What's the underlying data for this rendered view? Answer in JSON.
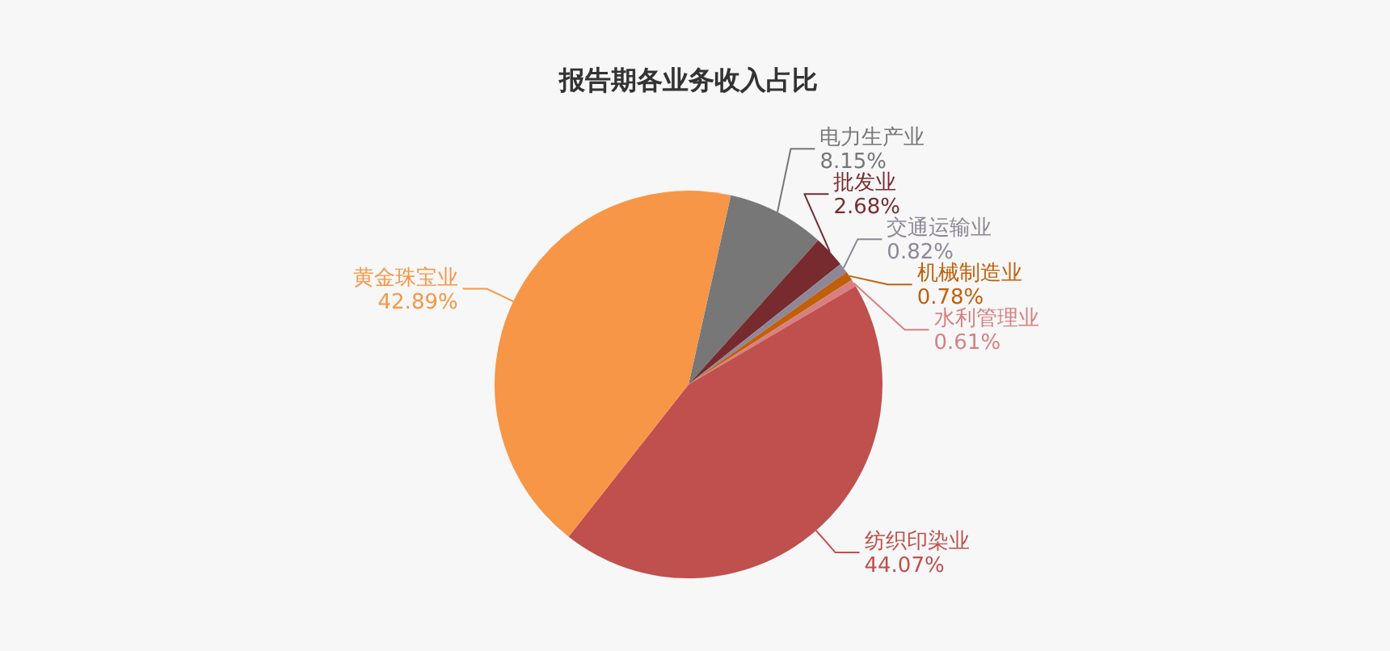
{
  "chart_data": {
    "type": "pie",
    "title": "报告期各业务收入占比",
    "categories": [
      "电力生产业",
      "批发业",
      "交通运输业",
      "机械制造业",
      "水利管理业",
      "纺织印染业",
      "黄金珠宝业"
    ],
    "values": [
      8.15,
      2.68,
      0.82,
      0.78,
      0.61,
      44.07,
      42.89
    ],
    "colors": [
      "#777777",
      "#772b2e",
      "#8e8798",
      "#c0600b",
      "#d88080",
      "#c0504d",
      "#f79646"
    ],
    "value_labels": [
      "8.15%",
      "2.68%",
      "0.82%",
      "0.78%",
      "0.61%",
      "44.07%",
      "42.89%"
    ]
  }
}
